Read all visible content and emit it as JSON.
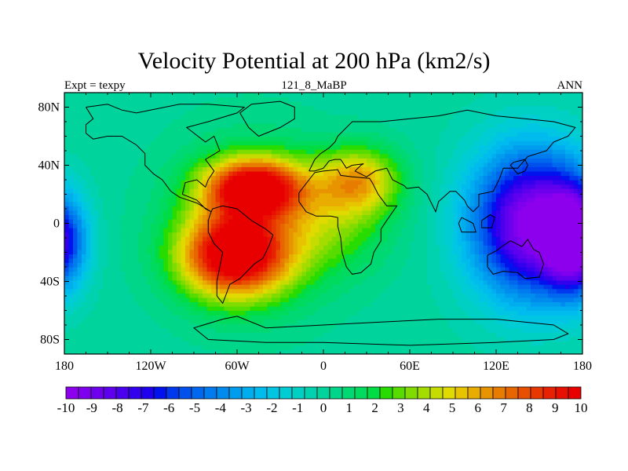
{
  "chart_data": {
    "type": "heatmap",
    "title": "Velocity Potential at 200 hPa (km2/s)",
    "subtitle_left": "Expt = texpy",
    "subtitle_center": "121_8_MaBP",
    "subtitle_right": "ANN",
    "x_range": [
      -180,
      180
    ],
    "y_range": [
      -90,
      90
    ],
    "x_ticks": [
      {
        "value": -180,
        "label": "180"
      },
      {
        "value": -120,
        "label": "120W"
      },
      {
        "value": -60,
        "label": "60W"
      },
      {
        "value": 0,
        "label": "0"
      },
      {
        "value": 60,
        "label": "60E"
      },
      {
        "value": 120,
        "label": "120E"
      },
      {
        "value": 180,
        "label": "180"
      }
    ],
    "y_ticks": [
      {
        "value": 80,
        "label": "80N"
      },
      {
        "value": 40,
        "label": "40N"
      },
      {
        "value": 0,
        "label": "0"
      },
      {
        "value": -40,
        "label": "40S"
      },
      {
        "value": -80,
        "label": "80S"
      }
    ],
    "colorbar": {
      "min": -10.5,
      "max": 10.5,
      "labels": [
        "-10",
        "-9",
        "-8",
        "-7",
        "-6",
        "-5",
        "-4",
        "-3",
        "-2",
        "-1",
        "0",
        "1",
        "2",
        "3",
        "4",
        "5",
        "6",
        "7",
        "8",
        "9",
        "10"
      ],
      "colors": [
        "#8d00ee",
        "#7f00ee",
        "#6f00ee",
        "#5e00ee",
        "#4a00ee",
        "#3300ee",
        "#1e00ee",
        "#0012ee",
        "#0038ee",
        "#0050ee",
        "#0068ee",
        "#007cee",
        "#008cee",
        "#009dee",
        "#00adee",
        "#00bbee",
        "#00c6e4",
        "#00ccd4",
        "#00d0c4",
        "#00d2b0",
        "#00d39c",
        "#00d689",
        "#00d874",
        "#00da5e",
        "#00dc44",
        "#28dc00",
        "#58dc00",
        "#80dc00",
        "#a4dc00",
        "#c6dc00",
        "#e0da00",
        "#e8c400",
        "#e8ad00",
        "#e89400",
        "#e87c00",
        "#e86600",
        "#e84f00",
        "#e83800",
        "#e82200",
        "#e81000",
        "#e80000"
      ]
    },
    "field_centers": [
      {
        "lon": -48,
        "lat": 25,
        "value": 10.0,
        "sigma_lon": 24,
        "sigma_lat": 14
      },
      {
        "lon": -62,
        "lat": -22,
        "value": 10.3,
        "sigma_lon": 26,
        "sigma_lat": 20
      },
      {
        "lon": 25,
        "lat": 30,
        "value": 5.5,
        "sigma_lon": 20,
        "sigma_lat": 16
      },
      {
        "lon": 5,
        "lat": 0,
        "value": 2.5,
        "sigma_lon": 30,
        "sigma_lat": 24
      },
      {
        "lon": -50,
        "lat": 0,
        "value": 3.0,
        "sigma_lon": 40,
        "sigma_lat": 40
      },
      {
        "lon": 145,
        "lat": 0,
        "value": -10.5,
        "sigma_lon": 30,
        "sigma_lat": 36
      },
      {
        "lon": -185,
        "lat": -12,
        "value": -8.5,
        "sigma_lon": 14,
        "sigma_lat": 24
      },
      {
        "lon": 175,
        "lat": -12,
        "value": -8.5,
        "sigma_lon": 14,
        "sigma_lat": 24
      }
    ],
    "coastline_segments": [
      [
        [
          -165,
          80
        ],
        [
          -150,
          82
        ],
        [
          -140,
          78
        ],
        [
          -130,
          76
        ],
        [
          -100,
          82
        ],
        [
          -80,
          82
        ],
        [
          -55,
          80
        ],
        [
          -60,
          76
        ],
        [
          -80,
          70
        ],
        [
          -95,
          66
        ],
        [
          -82,
          56
        ],
        [
          -76,
          60
        ],
        [
          -72,
          50
        ],
        [
          -82,
          44
        ],
        [
          -76,
          36
        ],
        [
          -80,
          30
        ],
        [
          -82,
          25
        ],
        [
          -88,
          30
        ],
        [
          -96,
          28
        ],
        [
          -98,
          20
        ],
        [
          -88,
          16
        ],
        [
          -82,
          10
        ],
        [
          -78,
          8
        ],
        [
          -77,
          10
        ],
        [
          -70,
          12
        ],
        [
          -60,
          10
        ],
        [
          -50,
          2
        ],
        [
          -40,
          -4
        ],
        [
          -35,
          -8
        ],
        [
          -38,
          -16
        ],
        [
          -42,
          -24
        ],
        [
          -48,
          -28
        ],
        [
          -54,
          -34
        ],
        [
          -58,
          -38
        ],
        [
          -65,
          -42
        ],
        [
          -68,
          -50
        ],
        [
          -70,
          -55
        ],
        [
          -74,
          -50
        ],
        [
          -74,
          -40
        ],
        [
          -72,
          -30
        ],
        [
          -70,
          -20
        ],
        [
          -76,
          -14
        ],
        [
          -80,
          -6
        ],
        [
          -80,
          2
        ],
        [
          -78,
          8
        ],
        [
          -88,
          14
        ],
        [
          -100,
          18
        ],
        [
          -106,
          22
        ],
        [
          -112,
          30
        ],
        [
          -118,
          34
        ],
        [
          -124,
          40
        ],
        [
          -124,
          48
        ],
        [
          -130,
          54
        ],
        [
          -140,
          60
        ],
        [
          -150,
          60
        ],
        [
          -160,
          58
        ],
        [
          -165,
          62
        ],
        [
          -165,
          68
        ],
        [
          -160,
          72
        ],
        [
          -165,
          80
        ]
      ],
      [
        [
          -50,
          82
        ],
        [
          -30,
          84
        ],
        [
          -20,
          80
        ],
        [
          -20,
          72
        ],
        [
          -30,
          66
        ],
        [
          -45,
          60
        ],
        [
          -52,
          66
        ],
        [
          -58,
          76
        ],
        [
          -50,
          82
        ]
      ],
      [
        [
          -10,
          36
        ],
        [
          -6,
          44
        ],
        [
          -2,
          48
        ],
        [
          4,
          52
        ],
        [
          8,
          56
        ],
        [
          10,
          60
        ],
        [
          20,
          70
        ],
        [
          40,
          70
        ],
        [
          60,
          72
        ],
        [
          80,
          74
        ],
        [
          100,
          78
        ],
        [
          120,
          74
        ],
        [
          140,
          72
        ],
        [
          160,
          70
        ],
        [
          175,
          66
        ],
        [
          170,
          60
        ],
        [
          160,
          56
        ],
        [
          155,
          50
        ],
        [
          142,
          46
        ],
        [
          135,
          38
        ],
        [
          125,
          38
        ],
        [
          122,
          30
        ],
        [
          118,
          22
        ],
        [
          108,
          20
        ],
        [
          108,
          12
        ],
        [
          104,
          8
        ],
        [
          100,
          12
        ],
        [
          98,
          16
        ],
        [
          92,
          22
        ],
        [
          88,
          22
        ],
        [
          80,
          15
        ],
        [
          78,
          8
        ],
        [
          72,
          20
        ],
        [
          66,
          25
        ],
        [
          58,
          24
        ],
        [
          56,
          26
        ],
        [
          52,
          28
        ],
        [
          48,
          30
        ],
        [
          44,
          38
        ],
        [
          36,
          36
        ],
        [
          30,
          32
        ],
        [
          22,
          36
        ],
        [
          26,
          40
        ],
        [
          28,
          41
        ],
        [
          20,
          40
        ],
        [
          16,
          38
        ],
        [
          12,
          44
        ],
        [
          8,
          44
        ],
        [
          4,
          43
        ],
        [
          0,
          38
        ],
        [
          -6,
          36
        ],
        [
          -10,
          36
        ]
      ],
      [
        [
          -17,
          21
        ],
        [
          -17,
          15
        ],
        [
          -12,
          8
        ],
        [
          -5,
          5
        ],
        [
          5,
          5
        ],
        [
          10,
          4
        ],
        [
          10,
          -2
        ],
        [
          12,
          -10
        ],
        [
          13,
          -20
        ],
        [
          16,
          -30
        ],
        [
          20,
          -35
        ],
        [
          26,
          -34
        ],
        [
          33,
          -28
        ],
        [
          35,
          -20
        ],
        [
          40,
          -12
        ],
        [
          40,
          -4
        ],
        [
          44,
          2
        ],
        [
          51,
          12
        ],
        [
          44,
          12
        ],
        [
          38,
          20
        ],
        [
          34,
          28
        ],
        [
          32,
          31
        ],
        [
          20,
          32
        ],
        [
          12,
          33
        ],
        [
          10,
          37
        ],
        [
          0,
          36
        ],
        [
          -6,
          35
        ],
        [
          -10,
          30
        ],
        [
          -17,
          21
        ]
      ],
      [
        [
          114,
          -22
        ],
        [
          114,
          -30
        ],
        [
          118,
          -35
        ],
        [
          125,
          -33
        ],
        [
          135,
          -34
        ],
        [
          140,
          -38
        ],
        [
          150,
          -37
        ],
        [
          153,
          -28
        ],
        [
          150,
          -20
        ],
        [
          146,
          -18
        ],
        [
          142,
          -11
        ],
        [
          138,
          -16
        ],
        [
          130,
          -12
        ],
        [
          124,
          -16
        ],
        [
          120,
          -19
        ],
        [
          114,
          -22
        ]
      ],
      [
        [
          -60,
          -64
        ],
        [
          -40,
          -72
        ],
        [
          0,
          -70
        ],
        [
          40,
          -68
        ],
        [
          80,
          -66
        ],
        [
          120,
          -66
        ],
        [
          160,
          -70
        ],
        [
          170,
          -76
        ],
        [
          160,
          -80
        ],
        [
          120,
          -82
        ],
        [
          60,
          -84
        ],
        [
          0,
          -82
        ],
        [
          -40,
          -82
        ],
        [
          -80,
          -80
        ],
        [
          -90,
          -72
        ],
        [
          -70,
          -66
        ],
        [
          -60,
          -64
        ]
      ],
      [
        [
          130,
          40
        ],
        [
          135,
          34
        ],
        [
          140,
          36
        ],
        [
          142,
          40
        ],
        [
          140,
          44
        ],
        [
          132,
          42
        ],
        [
          130,
          40
        ]
      ],
      [
        [
          96,
          4
        ],
        [
          104,
          0
        ],
        [
          106,
          -6
        ],
        [
          96,
          -6
        ],
        [
          94,
          0
        ],
        [
          96,
          4
        ]
      ],
      [
        [
          110,
          2
        ],
        [
          116,
          6
        ],
        [
          119,
          4
        ],
        [
          117,
          -3
        ],
        [
          110,
          -3
        ],
        [
          110,
          2
        ]
      ]
    ]
  }
}
